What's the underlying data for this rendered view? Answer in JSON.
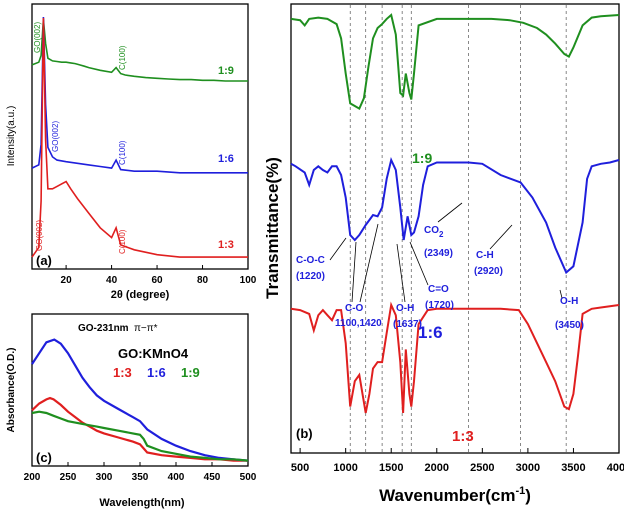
{
  "chart_data": [
    {
      "panel": "(a)",
      "type": "line",
      "xlabel": "2θ (degree)",
      "ylabel": "Intensity(a.u.)",
      "xlim": [
        5,
        100
      ],
      "xticks": [
        "20",
        "40",
        "60",
        "80",
        "100"
      ],
      "series": [
        {
          "name": "1:9",
          "color": "#1f8f1f",
          "peaks": [
            {
              "x": 10,
              "label": "GO(002)"
            },
            {
              "x": 42,
              "label": "C(100)"
            }
          ],
          "x": [
            5,
            8,
            9,
            10,
            11,
            12,
            14,
            16,
            18,
            20,
            22,
            24,
            26,
            28,
            30,
            35,
            40,
            42,
            44,
            46,
            50,
            55,
            60,
            65,
            70,
            75,
            80,
            85,
            90,
            95,
            100
          ],
          "y": [
            0.3,
            0.34,
            0.44,
            0.98,
            0.62,
            0.4,
            0.36,
            0.35,
            0.34,
            0.34,
            0.33,
            0.32,
            0.3,
            0.28,
            0.26,
            0.22,
            0.19,
            0.26,
            0.17,
            0.15,
            0.13,
            0.11,
            0.1,
            0.09,
            0.08,
            0.08,
            0.07,
            0.07,
            0.06,
            0.06,
            0.06
          ]
        },
        {
          "name": "1:6",
          "color": "#1f1fdc",
          "peaks": [
            {
              "x": 10,
              "label": "GO(002)"
            },
            {
              "x": 42,
              "label": "C(100)"
            }
          ],
          "x": [
            5,
            8,
            9,
            10,
            11,
            12,
            14,
            16,
            20,
            25,
            30,
            35,
            40,
            42,
            44,
            50,
            60,
            70,
            80,
            90,
            100
          ],
          "y": [
            0.05,
            0.07,
            0.2,
            1.0,
            0.45,
            0.18,
            0.12,
            0.1,
            0.09,
            0.08,
            0.07,
            0.06,
            0.05,
            0.1,
            0.04,
            0.03,
            0.03,
            0.02,
            0.02,
            0.02,
            0.02
          ]
        },
        {
          "name": "1:3",
          "color": "#e01f1f",
          "peaks": [
            {
              "x": 10,
              "label": "GO(002)"
            },
            {
              "x": 42,
              "label": "C(100)"
            }
          ],
          "x": [
            5,
            8,
            9,
            10,
            11,
            12,
            14,
            16,
            18,
            20,
            22,
            25,
            30,
            35,
            40,
            42,
            44,
            50,
            60,
            70,
            80,
            90,
            100
          ],
          "y": [
            0.02,
            0.06,
            0.25,
            1.0,
            0.5,
            0.3,
            0.3,
            0.31,
            0.32,
            0.33,
            0.3,
            0.26,
            0.2,
            0.14,
            0.1,
            0.14,
            0.07,
            0.05,
            0.03,
            0.02,
            0.02,
            0.02,
            0.02
          ]
        }
      ]
    },
    {
      "panel": "(b)",
      "type": "line",
      "xlabel": "Wavenumber(cm",
      "xlabel_sup": "-1",
      "xlabel_close": ")",
      "ylabel": "Transmittance(%)",
      "xlim": [
        400,
        4000
      ],
      "xticks": [
        "500",
        "1000",
        "1500",
        "2000",
        "2500",
        "3000",
        "3500",
        "4000"
      ],
      "gridlines_x": [
        1050,
        1220,
        1400,
        1620,
        1720,
        2349,
        2920,
        3420
      ],
      "series": [
        {
          "name": "1:9",
          "color": "#1f8f1f",
          "x": [
            400,
            500,
            550,
            600,
            700,
            800,
            850,
            900,
            950,
            1000,
            1050,
            1100,
            1150,
            1200,
            1250,
            1300,
            1350,
            1400,
            1450,
            1500,
            1550,
            1600,
            1630,
            1660,
            1700,
            1720,
            1750,
            1800,
            2000,
            2300,
            2400,
            2600,
            2800,
            2950,
            3100,
            3200,
            3300,
            3400,
            3450,
            3500,
            3600,
            3700,
            3800,
            4000
          ],
          "y": [
            0.97,
            0.96,
            0.92,
            0.97,
            0.98,
            0.97,
            0.95,
            0.93,
            0.82,
            0.55,
            0.32,
            0.3,
            0.28,
            0.36,
            0.6,
            0.82,
            0.9,
            0.93,
            0.97,
            1.0,
            0.85,
            0.4,
            0.38,
            0.55,
            0.4,
            0.35,
            0.55,
            0.92,
            0.97,
            0.97,
            0.97,
            0.97,
            0.96,
            0.94,
            0.9,
            0.85,
            0.78,
            0.7,
            0.68,
            0.75,
            0.92,
            0.98,
            0.99,
            1.0
          ]
        },
        {
          "name": "1:6",
          "color": "#1f1fdc",
          "x": [
            400,
            450,
            550,
            600,
            650,
            700,
            750,
            800,
            850,
            900,
            950,
            1000,
            1050,
            1100,
            1150,
            1220,
            1260,
            1300,
            1350,
            1400,
            1450,
            1500,
            1550,
            1600,
            1637,
            1680,
            1720,
            1750,
            1800,
            1850,
            1900,
            2000,
            2349,
            2500,
            2700,
            2920,
            3050,
            3200,
            3300,
            3420,
            3500,
            3600,
            3650,
            3700,
            3800,
            3900,
            4000
          ],
          "y": [
            0.97,
            0.95,
            0.9,
            0.8,
            0.92,
            0.95,
            0.92,
            0.9,
            0.95,
            0.95,
            0.88,
            0.7,
            0.4,
            0.36,
            0.4,
            0.48,
            0.52,
            0.56,
            0.55,
            0.62,
            0.85,
            1.0,
            0.92,
            0.62,
            0.36,
            0.55,
            0.4,
            0.42,
            0.55,
            0.8,
            0.95,
            0.98,
            0.98,
            0.97,
            0.88,
            0.82,
            0.7,
            0.5,
            0.3,
            0.1,
            0.15,
            0.5,
            0.85,
            0.95,
            0.97,
            0.98,
            1.0
          ]
        },
        {
          "name": "1:3",
          "color": "#e01f1f",
          "x": [
            400,
            500,
            600,
            650,
            700,
            750,
            800,
            850,
            900,
            950,
            1000,
            1050,
            1100,
            1150,
            1220,
            1260,
            1300,
            1350,
            1400,
            1450,
            1500,
            1550,
            1600,
            1630,
            1660,
            1700,
            1720,
            1750,
            1800,
            1900,
            2000,
            2400,
            2700,
            2900,
            3000,
            3100,
            3200,
            3300,
            3400,
            3450,
            3500,
            3550,
            3600,
            3700,
            3800,
            4000
          ],
          "y": [
            0.97,
            0.96,
            0.93,
            0.8,
            0.92,
            0.96,
            0.92,
            0.88,
            0.96,
            0.96,
            0.7,
            0.2,
            0.4,
            0.45,
            0.15,
            0.3,
            0.5,
            0.55,
            0.55,
            0.78,
            1.0,
            0.92,
            0.55,
            0.15,
            0.65,
            0.3,
            0.2,
            0.4,
            0.85,
            0.96,
            0.97,
            0.97,
            0.97,
            0.96,
            0.85,
            0.7,
            0.55,
            0.4,
            0.2,
            0.18,
            0.3,
            0.6,
            0.93,
            0.97,
            0.98,
            1.0
          ]
        }
      ],
      "annotations": {
        "coc": "C-O-C",
        "coc_val": "(1220)",
        "co": "C-O",
        "co_val": "1100,1420",
        "oh1": "O-H",
        "oh1_val": "(1637)",
        "ceo": "C=O",
        "ceo_val": "(1720)",
        "co2": "CO",
        "co2_sub": "2",
        "co2_val": "(2349)",
        "ch": "C-H",
        "ch_val": "(2920)",
        "oh2": "O-H",
        "oh2_val": "(3450)"
      }
    },
    {
      "panel": "(c)",
      "type": "line",
      "xlabel": "Wavelength(nm)",
      "ylabel": "Absorbance(O.D.)",
      "xlim": [
        200,
        500
      ],
      "xticks": [
        "200",
        "250",
        "300",
        "350",
        "400",
        "450",
        "500"
      ],
      "title": "GO:KMnO4",
      "peak_label": "GO-231nm",
      "transition_label": "π−π*",
      "series": [
        {
          "name": "1:3",
          "color": "#e01f1f",
          "x": [
            200,
            210,
            220,
            225,
            230,
            240,
            250,
            260,
            270,
            280,
            290,
            300,
            320,
            340,
            350,
            355,
            360,
            380,
            400,
            420,
            440,
            460,
            480,
            500
          ],
          "y": [
            0.38,
            0.43,
            0.46,
            0.47,
            0.46,
            0.42,
            0.37,
            0.33,
            0.29,
            0.26,
            0.23,
            0.21,
            0.18,
            0.15,
            0.13,
            0.1,
            0.07,
            0.05,
            0.04,
            0.03,
            0.02,
            0.02,
            0.01,
            0.01
          ]
        },
        {
          "name": "1:6",
          "color": "#1f1fdc",
          "x": [
            200,
            210,
            220,
            231,
            240,
            250,
            260,
            270,
            280,
            290,
            300,
            320,
            340,
            350,
            360,
            380,
            400,
            420,
            440,
            460,
            480,
            500
          ],
          "y": [
            0.72,
            0.8,
            0.88,
            0.9,
            0.87,
            0.8,
            0.71,
            0.62,
            0.55,
            0.49,
            0.45,
            0.39,
            0.33,
            0.3,
            0.24,
            0.17,
            0.12,
            0.08,
            0.05,
            0.03,
            0.02,
            0.01
          ]
        },
        {
          "name": "1:9",
          "color": "#1f8f1f",
          "x": [
            200,
            210,
            220,
            230,
            240,
            250,
            260,
            270,
            280,
            290,
            300,
            320,
            340,
            350,
            355,
            360,
            380,
            400,
            420,
            440,
            460,
            480,
            500
          ],
          "y": [
            0.36,
            0.37,
            0.36,
            0.34,
            0.32,
            0.3,
            0.29,
            0.28,
            0.27,
            0.26,
            0.25,
            0.23,
            0.21,
            0.2,
            0.17,
            0.12,
            0.08,
            0.06,
            0.04,
            0.03,
            0.02,
            0.02,
            0.01
          ]
        }
      ]
    }
  ]
}
